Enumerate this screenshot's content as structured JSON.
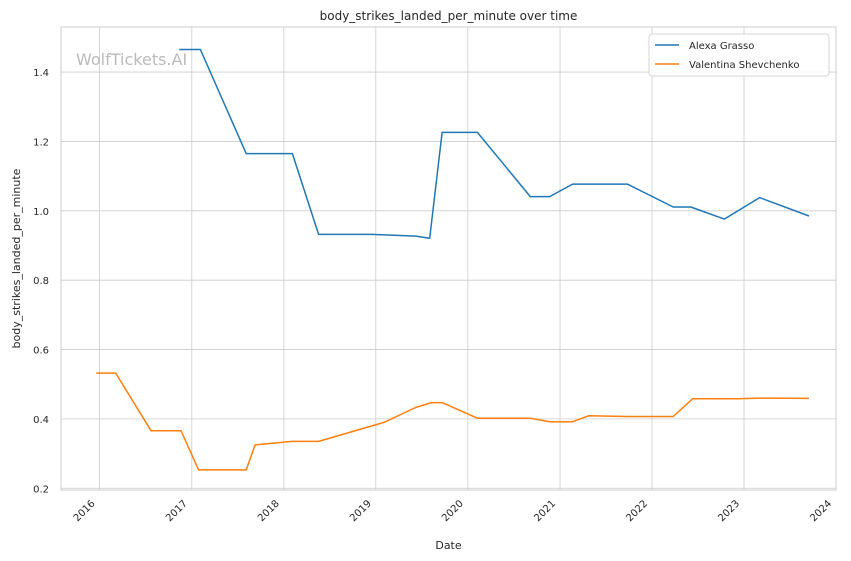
{
  "chart_data": {
    "type": "line",
    "title": "body_strikes_landed_per_minute over time",
    "xlabel": "Date",
    "ylabel": "body_strikes_landed_per_minute",
    "watermark": "WolfTickets.AI",
    "xlim": [
      "2015-08-01",
      "2024-01-01"
    ],
    "ylim": [
      0.195,
      1.53
    ],
    "x_ticks": [
      "2016-01-01",
      "2017-01-01",
      "2018-01-01",
      "2019-01-01",
      "2020-01-01",
      "2021-01-01",
      "2022-01-01",
      "2023-01-01",
      "2024-01-01"
    ],
    "x_tick_labels": [
      "2016",
      "2017",
      "2018",
      "2019",
      "2020",
      "2021",
      "2022",
      "2023",
      "2024"
    ],
    "y_ticks": [
      0.2,
      0.4,
      0.6,
      0.8,
      1.0,
      1.2,
      1.4
    ],
    "y_tick_labels": [
      "0.2",
      "0.4",
      "0.6",
      "0.8",
      "1.0",
      "1.2",
      "1.4"
    ],
    "grid": true,
    "legend_position": "top-right",
    "series": [
      {
        "name": "Alexa Grasso",
        "color": "#1f77b4",
        "points": [
          [
            "2016-11-12",
            1.465
          ],
          [
            "2017-02-04",
            1.465
          ],
          [
            "2017-08-05",
            1.165
          ],
          [
            "2018-02-04",
            1.165
          ],
          [
            "2018-05-19",
            0.932
          ],
          [
            "2018-12-15",
            0.932
          ],
          [
            "2019-06-08",
            0.927
          ],
          [
            "2019-08-03",
            0.921
          ],
          [
            "2019-09-21",
            1.226
          ],
          [
            "2020-02-08",
            1.226
          ],
          [
            "2020-09-05",
            1.041
          ],
          [
            "2020-11-21",
            1.041
          ],
          [
            "2021-02-20",
            1.077
          ],
          [
            "2021-09-25",
            1.077
          ],
          [
            "2022-03-26",
            1.011
          ],
          [
            "2022-06-04",
            1.011
          ],
          [
            "2022-10-15",
            0.976
          ],
          [
            "2023-03-04",
            1.038
          ],
          [
            "2023-09-16",
            0.985
          ]
        ]
      },
      {
        "name": "Valentina Shevchenko",
        "color": "#ff7f0e",
        "points": [
          [
            "2015-12-19",
            0.532
          ],
          [
            "2016-03-05",
            0.532
          ],
          [
            "2016-07-23",
            0.366
          ],
          [
            "2016-11-19",
            0.366
          ],
          [
            "2017-01-28",
            0.253
          ],
          [
            "2017-08-05",
            0.253
          ],
          [
            "2017-09-09",
            0.325
          ],
          [
            "2018-02-03",
            0.335
          ],
          [
            "2018-05-19",
            0.335
          ],
          [
            "2019-02-02",
            0.39
          ],
          [
            "2019-06-08",
            0.433
          ],
          [
            "2019-08-10",
            0.447
          ],
          [
            "2019-09-21",
            0.447
          ],
          [
            "2020-02-08",
            0.402
          ],
          [
            "2020-09-05",
            0.402
          ],
          [
            "2020-11-21",
            0.392
          ],
          [
            "2021-02-20",
            0.392
          ],
          [
            "2021-04-24",
            0.409
          ],
          [
            "2021-09-25",
            0.407
          ],
          [
            "2022-03-26",
            0.407
          ],
          [
            "2022-06-11",
            0.458
          ],
          [
            "2022-12-10",
            0.458
          ],
          [
            "2023-03-04",
            0.46
          ],
          [
            "2023-09-16",
            0.459
          ]
        ]
      }
    ]
  }
}
